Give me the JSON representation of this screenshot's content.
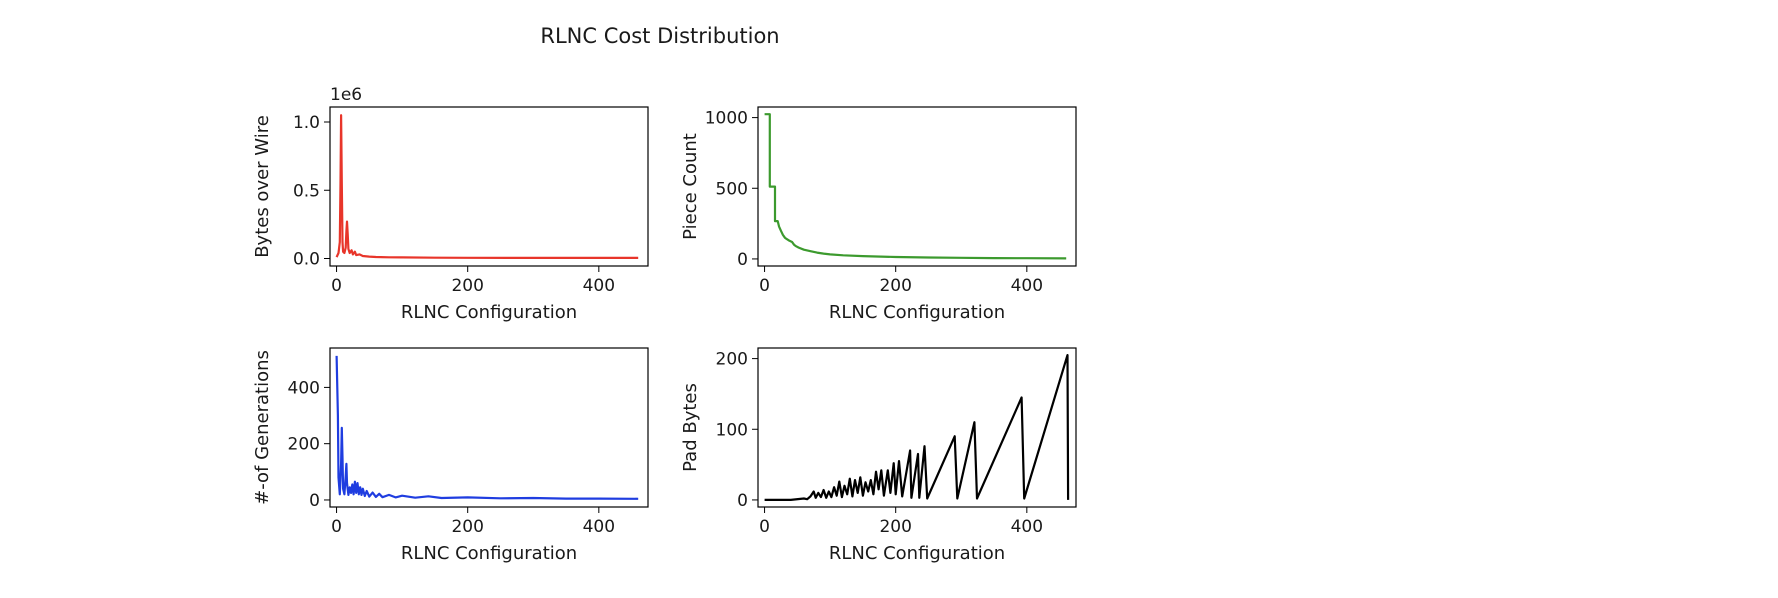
{
  "chart_data": {
    "title": "RLNC Cost Distribution",
    "panels": [
      {
        "type": "line",
        "name": "bytes",
        "color": "#e8352a",
        "xlabel": "RLNC Configuration",
        "ylabel": "Bytes over Wire",
        "offset_label": "1e6",
        "xlim": [
          -10,
          475
        ],
        "ylim": [
          -0.055,
          1.11
        ],
        "xticks": [
          0,
          200,
          400
        ],
        "xtick_labels": [
          "0",
          "200",
          "400"
        ],
        "yticks": [
          0,
          0.5,
          1.0
        ],
        "ytick_labels": [
          "0.0",
          "0.5",
          "1.0"
        ],
        "points": [
          [
            0,
            0.01
          ],
          [
            3,
            0.04
          ],
          [
            5,
            0.12
          ],
          [
            6,
            0.55
          ],
          [
            7,
            1.05
          ],
          [
            8,
            0.55
          ],
          [
            9,
            0.12
          ],
          [
            10,
            0.05
          ],
          [
            12,
            0.04
          ],
          [
            14,
            0.08
          ],
          [
            15,
            0.2
          ],
          [
            16,
            0.27
          ],
          [
            17,
            0.18
          ],
          [
            18,
            0.07
          ],
          [
            20,
            0.04
          ],
          [
            23,
            0.06
          ],
          [
            25,
            0.03
          ],
          [
            28,
            0.05
          ],
          [
            30,
            0.025
          ],
          [
            35,
            0.03
          ],
          [
            40,
            0.018
          ],
          [
            50,
            0.014
          ],
          [
            60,
            0.011
          ],
          [
            80,
            0.009
          ],
          [
            100,
            0.008
          ],
          [
            150,
            0.006
          ],
          [
            200,
            0.005
          ],
          [
            300,
            0.004
          ],
          [
            400,
            0.004
          ],
          [
            460,
            0.004
          ]
        ]
      },
      {
        "type": "line",
        "name": "pieces",
        "color": "#3c9a2e",
        "xlabel": "RLNC Configuration",
        "ylabel": "Piece Count",
        "xlim": [
          -10,
          475
        ],
        "ylim": [
          -50,
          1075
        ],
        "xticks": [
          0,
          200,
          400
        ],
        "xtick_labels": [
          "0",
          "200",
          "400"
        ],
        "yticks": [
          0,
          500,
          1000
        ],
        "ytick_labels": [
          "0",
          "500",
          "1000"
        ],
        "points": [
          [
            0,
            1024
          ],
          [
            8,
            1024
          ],
          [
            8,
            512
          ],
          [
            16,
            512
          ],
          [
            16,
            268
          ],
          [
            20,
            268
          ],
          [
            22,
            230
          ],
          [
            25,
            200
          ],
          [
            28,
            170
          ],
          [
            31,
            150
          ],
          [
            34,
            140
          ],
          [
            38,
            128
          ],
          [
            42,
            120
          ],
          [
            45,
            100
          ],
          [
            48,
            90
          ],
          [
            52,
            80
          ],
          [
            60,
            65
          ],
          [
            70,
            55
          ],
          [
            80,
            45
          ],
          [
            90,
            38
          ],
          [
            100,
            32
          ],
          [
            120,
            26
          ],
          [
            150,
            20
          ],
          [
            200,
            14
          ],
          [
            250,
            10
          ],
          [
            300,
            8
          ],
          [
            350,
            6
          ],
          [
            400,
            5
          ],
          [
            460,
            4
          ]
        ]
      },
      {
        "type": "line",
        "name": "generations",
        "color": "#1f3de0",
        "xlabel": "RLNC Configuration",
        "ylabel": "#-of Generations",
        "xlim": [
          -10,
          475
        ],
        "ylim": [
          -25,
          540
        ],
        "xticks": [
          0,
          200,
          400
        ],
        "xtick_labels": [
          "0",
          "200",
          "400"
        ],
        "yticks": [
          0,
          200,
          400
        ],
        "ytick_labels": [
          "0",
          "200",
          "400"
        ],
        "points": [
          [
            0,
            512
          ],
          [
            2,
            300
          ],
          [
            3,
            80
          ],
          [
            5,
            20
          ],
          [
            7,
            128
          ],
          [
            8,
            256
          ],
          [
            9,
            150
          ],
          [
            10,
            40
          ],
          [
            12,
            20
          ],
          [
            14,
            85
          ],
          [
            15,
            128
          ],
          [
            16,
            60
          ],
          [
            18,
            18
          ],
          [
            20,
            45
          ],
          [
            22,
            25
          ],
          [
            24,
            55
          ],
          [
            26,
            20
          ],
          [
            28,
            65
          ],
          [
            30,
            25
          ],
          [
            32,
            60
          ],
          [
            34,
            20
          ],
          [
            36,
            45
          ],
          [
            38,
            18
          ],
          [
            40,
            40
          ],
          [
            43,
            14
          ],
          [
            46,
            32
          ],
          [
            50,
            12
          ],
          [
            55,
            26
          ],
          [
            60,
            11
          ],
          [
            65,
            22
          ],
          [
            70,
            10
          ],
          [
            80,
            18
          ],
          [
            90,
            9
          ],
          [
            100,
            15
          ],
          [
            120,
            8
          ],
          [
            140,
            13
          ],
          [
            160,
            7
          ],
          [
            200,
            9
          ],
          [
            250,
            6
          ],
          [
            300,
            7
          ],
          [
            350,
            5
          ],
          [
            400,
            5
          ],
          [
            460,
            4
          ]
        ]
      },
      {
        "type": "line",
        "name": "pad",
        "color": "#000000",
        "xlabel": "RLNC Configuration",
        "ylabel": "Pad Bytes",
        "xlim": [
          -10,
          475
        ],
        "ylim": [
          -10,
          215
        ],
        "xticks": [
          0,
          200,
          400
        ],
        "xtick_labels": [
          "0",
          "200",
          "400"
        ],
        "yticks": [
          0,
          100,
          200
        ],
        "ytick_labels": [
          "0",
          "100",
          "200"
        ],
        "points": [
          [
            0,
            0
          ],
          [
            40,
            0
          ],
          [
            60,
            2
          ],
          [
            65,
            1
          ],
          [
            70,
            5
          ],
          [
            75,
            12
          ],
          [
            78,
            3
          ],
          [
            82,
            10
          ],
          [
            86,
            4
          ],
          [
            90,
            14
          ],
          [
            94,
            3
          ],
          [
            98,
            12
          ],
          [
            102,
            4
          ],
          [
            106,
            18
          ],
          [
            110,
            6
          ],
          [
            114,
            26
          ],
          [
            118,
            4
          ],
          [
            122,
            20
          ],
          [
            126,
            8
          ],
          [
            130,
            30
          ],
          [
            134,
            5
          ],
          [
            138,
            28
          ],
          [
            142,
            10
          ],
          [
            146,
            32
          ],
          [
            150,
            6
          ],
          [
            154,
            25
          ],
          [
            158,
            12
          ],
          [
            162,
            28
          ],
          [
            166,
            8
          ],
          [
            170,
            40
          ],
          [
            174,
            15
          ],
          [
            178,
            42
          ],
          [
            182,
            6
          ],
          [
            188,
            42
          ],
          [
            192,
            10
          ],
          [
            197,
            52
          ],
          [
            200,
            8
          ],
          [
            205,
            55
          ],
          [
            210,
            5
          ],
          [
            222,
            70
          ],
          [
            224,
            3
          ],
          [
            234,
            65
          ],
          [
            236,
            3
          ],
          [
            244,
            76
          ],
          [
            248,
            2
          ],
          [
            290,
            90
          ],
          [
            294,
            2
          ],
          [
            320,
            110
          ],
          [
            324,
            2
          ],
          [
            392,
            145
          ],
          [
            396,
            2
          ],
          [
            462,
            205
          ],
          [
            463,
            0
          ]
        ]
      }
    ]
  }
}
